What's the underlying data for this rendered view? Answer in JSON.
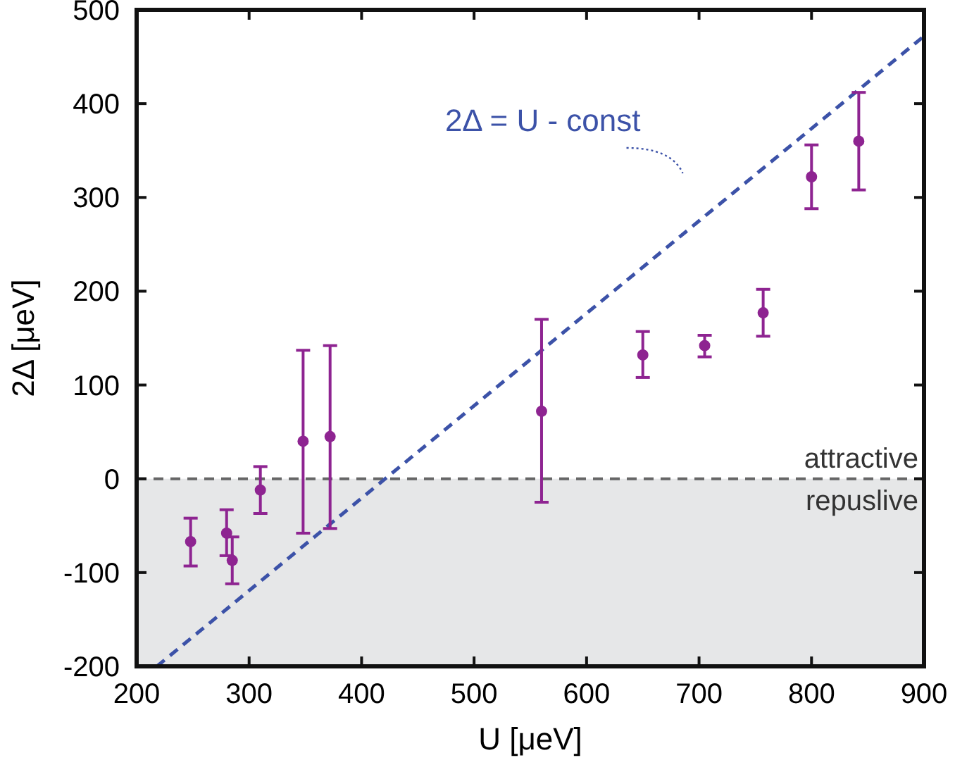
{
  "chart_data": {
    "type": "scatter",
    "xlabel": "U [μeV]",
    "ylabel": "2Δ [μeV]",
    "xlim": [
      200,
      900
    ],
    "xticks": [
      200,
      300,
      400,
      500,
      600,
      700,
      800,
      900
    ],
    "ylim": [
      -200,
      500
    ],
    "yticks": [
      -200,
      -100,
      0,
      100,
      200,
      300,
      400,
      500
    ],
    "grid": false,
    "marker": "circle",
    "series": [
      {
        "type": "scatter",
        "color": "#8e2491",
        "x": [
          248,
          280,
          285,
          310,
          348,
          372,
          560,
          650,
          705,
          757,
          800,
          842
        ],
        "values": [
          -67,
          -58,
          -87,
          -12,
          40,
          45,
          72,
          132,
          142,
          177,
          322,
          360
        ],
        "errors": [
          [
            -93,
            -42
          ],
          [
            -82,
            -33
          ],
          [
            -112,
            -62
          ],
          [
            -37,
            13
          ],
          [
            -58,
            137
          ],
          [
            -53,
            142
          ],
          [
            -25,
            170
          ],
          [
            108,
            157
          ],
          [
            130,
            153
          ],
          [
            152,
            202
          ],
          [
            288,
            356
          ],
          [
            308,
            412
          ]
        ]
      },
      {
        "type": "line",
        "color": "#3c52a8",
        "line_style": "dashed",
        "marker": "none",
        "x": [
          218,
          900
        ],
        "values": [
          -200,
          472
        ]
      }
    ],
    "ref_lines": [
      {
        "axis": "y",
        "value": 0,
        "label": "attractive",
        "color": "#666666",
        "line_style": "dashed"
      }
    ],
    "bands": [
      {
        "axis": "y",
        "from": -200,
        "to": 0,
        "label": "repuslive",
        "color": "#e6e7e8"
      }
    ],
    "annotations": [
      "2Δ = U - const"
    ]
  }
}
